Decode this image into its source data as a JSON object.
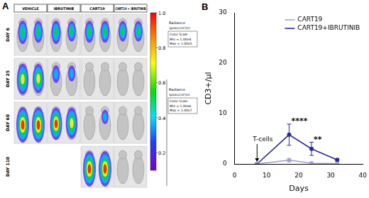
{
  "labels": {
    "panel_a": "A",
    "panel_b": "B"
  },
  "panel_a": {
    "columns": [
      "VEHICLE",
      "IBRUTINIB",
      "CART19",
      "CART19 + IBRUTINIB"
    ],
    "rows": [
      {
        "day": "DAY 6",
        "signal": [
          [
            0.6,
            0.55
          ],
          [
            0.6,
            0.5
          ],
          [
            0.55,
            0.55
          ],
          [
            0.5,
            0.5
          ]
        ]
      },
      {
        "day": "DAY 25",
        "signal": [
          [
            0.85,
            0.8
          ],
          [
            0.4,
            0.35
          ],
          [
            0,
            0
          ],
          [
            0,
            0
          ]
        ]
      },
      {
        "day": "DAY 60",
        "signal": [
          [
            1,
            1
          ],
          [
            0.9,
            0.85
          ],
          [
            0,
            0.3
          ],
          [
            0,
            0
          ]
        ]
      },
      {
        "day": "DAY 110",
        "signal": [
          null,
          null,
          [
            1,
            1
          ],
          [
            0,
            0
          ]
        ]
      }
    ],
    "color_bar": {
      "range": [
        0.1,
        1
      ],
      "ticks": [
        {
          "value": 1,
          "label": "1.0"
        },
        {
          "value": 0.8,
          "label": "0.8"
        },
        {
          "value": 0.6,
          "label": "0.6"
        },
        {
          "value": 0.4,
          "label": "0.4"
        },
        {
          "value": 0.2,
          "label": "0.2"
        }
      ]
    },
    "scales": [
      {
        "title": "Radiance",
        "unit": "(p/sec/cm²/sr)",
        "heading": "Color Scale",
        "min": "Min = 1.00e4",
        "max": "Max = 1.00e5"
      },
      {
        "title": "Radiance",
        "unit": "(p/sec/cm²/sr)",
        "heading": "Color Scale",
        "min": "Min = 1.00e6",
        "max": "Max = 1.00e7"
      }
    ]
  },
  "chart_data": {
    "type": "line",
    "x": [
      7,
      17,
      24,
      32
    ],
    "series": [
      {
        "name": "CART19",
        "color": "#a3a3d9",
        "marker": "circle",
        "values": [
          0,
          0.75,
          0.15,
          0.05
        ],
        "errors": [
          0,
          0.35,
          0.1,
          0.05
        ]
      },
      {
        "name": "CART19+IBRUTINIB",
        "color": "#2b2b9a",
        "marker": "circle",
        "values": [
          0,
          5.8,
          3.0,
          0.8
        ],
        "errors": [
          0,
          2.1,
          1.3,
          0.25
        ]
      }
    ],
    "x_label": "Days",
    "y_label": "CD3+/µl",
    "xlim": [
      0,
      40
    ],
    "xticks": [
      0,
      10,
      20,
      30,
      40
    ],
    "ylim": [
      0,
      30
    ],
    "yticks": [
      0,
      10,
      20,
      30
    ],
    "grid": false,
    "legend": "upper right",
    "annotations": [
      {
        "text": "T-cells",
        "x": 7,
        "y": 0,
        "marker": "arrow"
      },
      {
        "text": "****",
        "x": 17,
        "y": 7.9
      },
      {
        "text": "**",
        "x": 24,
        "y": 4.3
      }
    ]
  }
}
